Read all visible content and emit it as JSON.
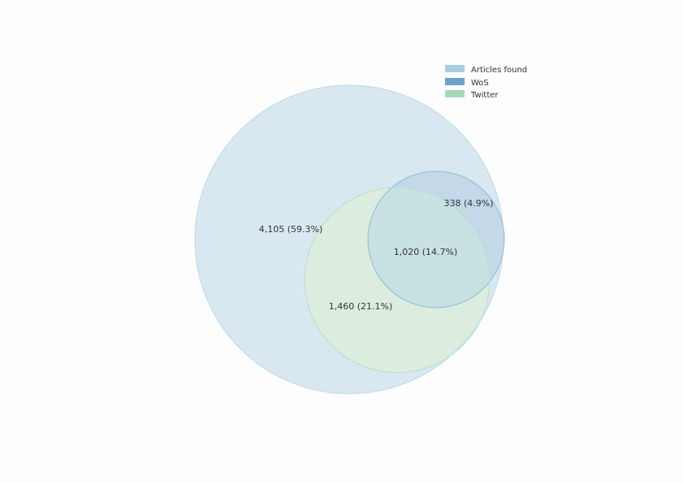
{
  "sets": [
    {
      "key": "articles_found",
      "name": "Articles found",
      "color": "#a6cee3",
      "fill": "#d9e8f0",
      "stroke": "#bcd7e6"
    },
    {
      "key": "wos",
      "name": "WoS",
      "color": "#6aa3c8",
      "fill": "#c3d9ea",
      "stroke": "#8dbbd8"
    },
    {
      "key": "twitter",
      "name": "Twitter",
      "color": "#a6d8b8",
      "fill": "#dcede0",
      "stroke": "#b6dccb"
    }
  ],
  "overlap_fill": "#c8e1e3",
  "regions": [
    {
      "key": "articles_only",
      "sets": [
        "Articles found"
      ],
      "label": "4,105 (59.3%)",
      "count": 4105,
      "percent": 59.3
    },
    {
      "key": "articles_wos",
      "sets": [
        "Articles found",
        "WoS"
      ],
      "label": "338 (4.9%)",
      "count": 338,
      "percent": 4.9
    },
    {
      "key": "all_three",
      "sets": [
        "Articles found",
        "WoS",
        "Twitter"
      ],
      "label": "1,020 (14.7%)",
      "count": 1020,
      "percent": 14.7
    },
    {
      "key": "articles_twitter",
      "sets": [
        "Articles found",
        "Twitter"
      ],
      "label": "1,460 (21.1%)",
      "count": 1460,
      "percent": 21.1
    }
  ],
  "legend": {
    "placement": "top-right",
    "items": [
      "Articles found",
      "WoS",
      "Twitter"
    ]
  }
}
